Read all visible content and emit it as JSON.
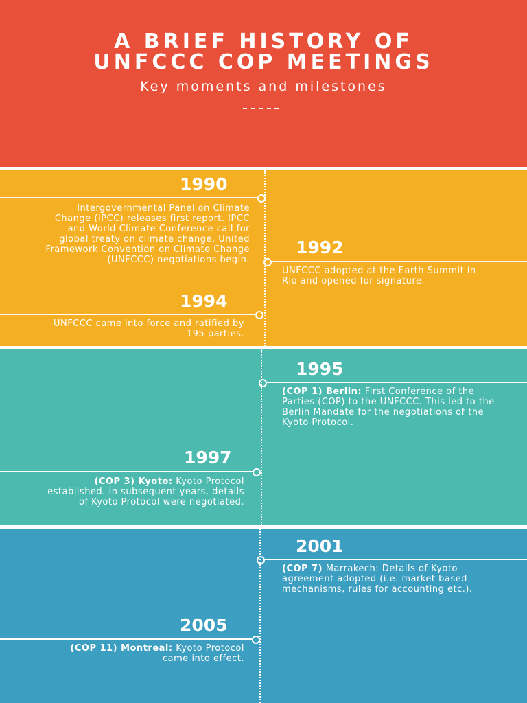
{
  "colors": {
    "header_red": "#E8503A",
    "band_yellow": "#F5AF23",
    "band_teal": "#4DBAB0",
    "band_blue": "#3C9EC0",
    "text_white": "#FFFFFF"
  },
  "header": {
    "title_line1": "A BRIEF HISTORY OF",
    "title_line2": "UNFCCC COP MEETINGS",
    "subtitle": "Key moments and milestones"
  },
  "events": {
    "e1990": {
      "year": "1990",
      "text": "Intergovernmental Panel on Climate Change (IPCC) releases first report. IPCC and World Climate Conference call for global treaty on climate change. United Framework Convention on Climate Change (UNFCCC) negotiations begin."
    },
    "e1992": {
      "year": "1992",
      "text": "UNFCCC adopted at the Earth Summit in Rio and opened for signature."
    },
    "e1994": {
      "year": "1994",
      "text": "UNFCCC came into force and ratified by 195 parties."
    },
    "e1995": {
      "year": "1995",
      "bold": "(COP 1) Berlin:",
      "text": " First Conference of the Parties (COP) to the UNFCCC. This led to the Berlin Mandate for the negotiations of the Kyoto Protocol."
    },
    "e1997": {
      "year": "1997",
      "bold": "(COP 3) Kyoto:",
      "text": " Kyoto Protocol established. In subsequent years, details of Kyoto Protocol were negotiated."
    },
    "e2001": {
      "year": "2001",
      "bold": "(COP 7)",
      "text": " Marrakech: Details of Kyoto agreement adopted (i.e. market based mechanisms, rules for accounting etc.)."
    },
    "e2005": {
      "year": "2005",
      "bold": "(COP 11) Montreal:",
      "text": " Kyoto Protocol came into effect."
    }
  }
}
